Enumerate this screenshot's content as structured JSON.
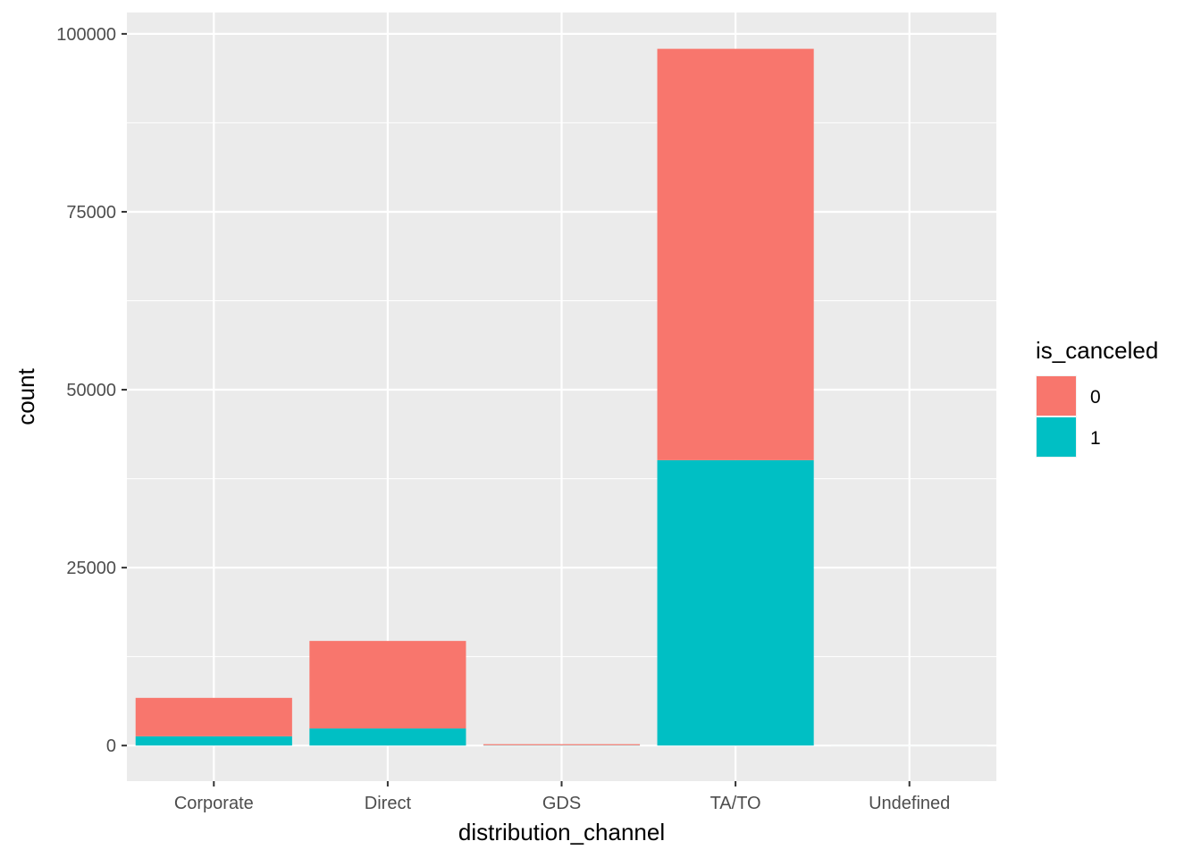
{
  "chart_data": {
    "type": "bar",
    "stacked": true,
    "categories": [
      "Corporate",
      "Direct",
      "GDS",
      "TA/TO",
      "Undefined"
    ],
    "series": [
      {
        "name": "0",
        "values": [
          5400,
          12300,
          150,
          57800,
          1
        ],
        "color": "#F8766D"
      },
      {
        "name": "1",
        "values": [
          1300,
          2400,
          40,
          40100,
          4
        ],
        "color": "#00BFC4"
      }
    ],
    "xlabel": "distribution_channel",
    "ylabel": "count",
    "ylim": [
      -5000,
      103000
    ],
    "yticks": [
      0,
      25000,
      50000,
      75000,
      100000
    ],
    "ytick_labels": [
      "0",
      "25000",
      "50000",
      "75000",
      "100000"
    ],
    "grid": true,
    "legend": {
      "title": "is_canceled",
      "position": "right"
    },
    "panel_background": "#EBEBEB",
    "grid_color": "#FFFFFF"
  }
}
